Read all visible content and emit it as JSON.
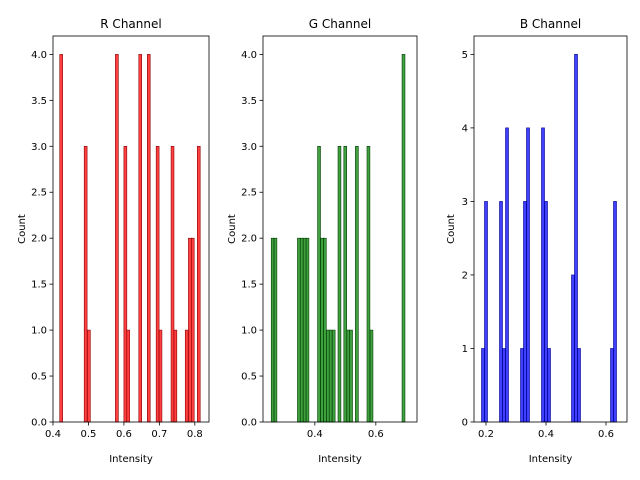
{
  "chart_data": [
    {
      "type": "bar",
      "title": "R Channel",
      "xlabel": "Intensity",
      "ylabel": "Count",
      "color": "#ff0000",
      "xlim": [
        0.4,
        0.84
      ],
      "ylim": [
        0,
        4.2
      ],
      "bin_width": 0.0082,
      "xticks": [
        "0.4",
        "0.5",
        "0.6",
        "0.7",
        "0.8"
      ],
      "yticks": [
        "0.0",
        "0.5",
        "1.0",
        "1.5",
        "2.0",
        "2.5",
        "3.0",
        "3.5",
        "4.0"
      ],
      "bins": [
        {
          "x": 0.419,
          "count": 4
        },
        {
          "x": 0.488,
          "count": 3
        },
        {
          "x": 0.497,
          "count": 1
        },
        {
          "x": 0.576,
          "count": 4
        },
        {
          "x": 0.6,
          "count": 3
        },
        {
          "x": 0.608,
          "count": 1
        },
        {
          "x": 0.642,
          "count": 4
        },
        {
          "x": 0.666,
          "count": 4
        },
        {
          "x": 0.691,
          "count": 3
        },
        {
          "x": 0.699,
          "count": 1
        },
        {
          "x": 0.733,
          "count": 3
        },
        {
          "x": 0.741,
          "count": 1
        },
        {
          "x": 0.773,
          "count": 1
        },
        {
          "x": 0.782,
          "count": 2
        },
        {
          "x": 0.79,
          "count": 2
        },
        {
          "x": 0.807,
          "count": 3
        }
      ]
    },
    {
      "type": "bar",
      "title": "G Channel",
      "xlabel": "Intensity",
      "ylabel": "Count",
      "color": "#008000",
      "xlim": [
        0.23,
        0.735
      ],
      "ylim": [
        0,
        4.2
      ],
      "bin_width": 0.0095,
      "xticks": [
        "0.4",
        "0.6"
      ],
      "xtick_values": [
        0.4,
        0.6
      ],
      "yticks": [
        "0.0",
        "0.5",
        "1.0",
        "1.5",
        "2.0",
        "2.5",
        "3.0",
        "3.5",
        "4.0"
      ],
      "bins": [
        {
          "x": 0.257,
          "count": 2
        },
        {
          "x": 0.266,
          "count": 2
        },
        {
          "x": 0.343,
          "count": 2
        },
        {
          "x": 0.352,
          "count": 2
        },
        {
          "x": 0.362,
          "count": 2
        },
        {
          "x": 0.371,
          "count": 2
        },
        {
          "x": 0.409,
          "count": 3
        },
        {
          "x": 0.419,
          "count": 2
        },
        {
          "x": 0.428,
          "count": 2
        },
        {
          "x": 0.438,
          "count": 1
        },
        {
          "x": 0.447,
          "count": 1
        },
        {
          "x": 0.457,
          "count": 1
        },
        {
          "x": 0.476,
          "count": 3
        },
        {
          "x": 0.495,
          "count": 3
        },
        {
          "x": 0.505,
          "count": 1
        },
        {
          "x": 0.514,
          "count": 1
        },
        {
          "x": 0.533,
          "count": 3
        },
        {
          "x": 0.571,
          "count": 3
        },
        {
          "x": 0.581,
          "count": 1
        },
        {
          "x": 0.686,
          "count": 4
        }
      ]
    },
    {
      "type": "bar",
      "title": "B Channel",
      "xlabel": "Intensity",
      "ylabel": "Count",
      "color": "#0000ff",
      "xlim": [
        0.16,
        0.67
      ],
      "ylim": [
        0,
        5.25
      ],
      "bin_width": 0.01,
      "xticks": [
        "0.2",
        "0.4",
        "0.6"
      ],
      "xtick_values": [
        0.2,
        0.4,
        0.6
      ],
      "yticks": [
        "0",
        "1",
        "2",
        "3",
        "4",
        "5"
      ],
      "bins": [
        {
          "x": 0.185,
          "count": 1
        },
        {
          "x": 0.195,
          "count": 3
        },
        {
          "x": 0.245,
          "count": 3
        },
        {
          "x": 0.255,
          "count": 1
        },
        {
          "x": 0.265,
          "count": 4
        },
        {
          "x": 0.315,
          "count": 1
        },
        {
          "x": 0.325,
          "count": 3
        },
        {
          "x": 0.335,
          "count": 4
        },
        {
          "x": 0.385,
          "count": 4
        },
        {
          "x": 0.395,
          "count": 3
        },
        {
          "x": 0.405,
          "count": 1
        },
        {
          "x": 0.485,
          "count": 2
        },
        {
          "x": 0.495,
          "count": 5
        },
        {
          "x": 0.505,
          "count": 1
        },
        {
          "x": 0.615,
          "count": 1
        },
        {
          "x": 0.625,
          "count": 3
        }
      ]
    }
  ]
}
